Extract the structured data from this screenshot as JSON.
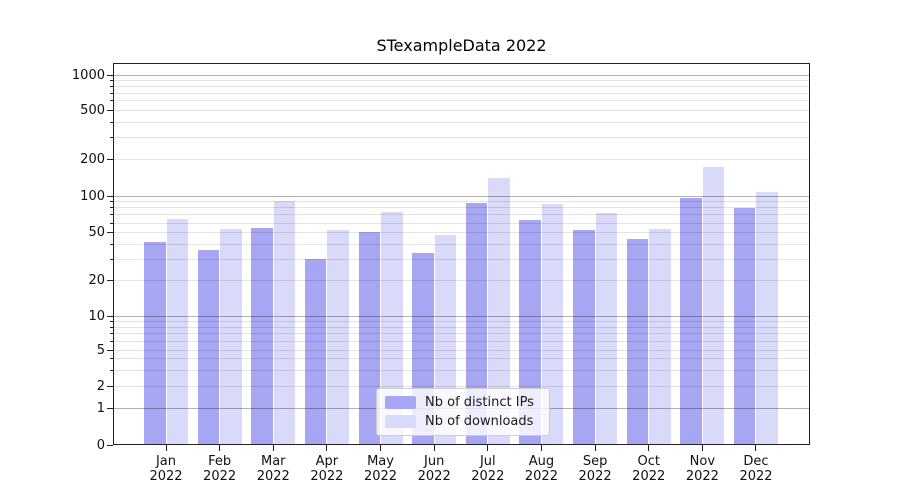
{
  "title": "STexampleData 2022",
  "legend": {
    "items": [
      {
        "label": "Nb of distinct IPs",
        "series": "ips"
      },
      {
        "label": "Nb of downloads",
        "series": "downloads"
      }
    ]
  },
  "colors": {
    "ips": "#a6a6f2",
    "downloads": "#d9d9f9",
    "grid_major": "rgba(0,0,0,0.30)",
    "grid_minor": "rgba(0,0,0,0.11)",
    "spine": "#222222",
    "text": "#111111"
  },
  "y_axis": {
    "tick_labels": [
      "0",
      "1",
      "2",
      "5",
      "10",
      "20",
      "50",
      "100",
      "200",
      "500",
      "1000"
    ],
    "tick_values": [
      0,
      1,
      2,
      5,
      10,
      20,
      50,
      100,
      200,
      500,
      1000
    ],
    "minor_values": [
      3,
      4,
      6,
      7,
      8,
      9,
      30,
      40,
      60,
      70,
      80,
      90,
      300,
      400,
      600,
      700,
      800,
      900
    ]
  },
  "x_axis": {
    "months": [
      "Jan",
      "Feb",
      "Mar",
      "Apr",
      "May",
      "Jun",
      "Jul",
      "Aug",
      "Sep",
      "Oct",
      "Nov",
      "Dec"
    ],
    "year": "2022"
  },
  "chart_data": {
    "type": "bar",
    "title": "STexampleData 2022",
    "categories": [
      "Jan 2022",
      "Feb 2022",
      "Mar 2022",
      "Apr 2022",
      "May 2022",
      "Jun 2022",
      "Jul 2022",
      "Aug 2022",
      "Sep 2022",
      "Oct 2022",
      "Nov 2022",
      "Dec 2022"
    ],
    "series": [
      {
        "name": "Nb of distinct IPs",
        "color": "#a6a6f2",
        "values": [
          42,
          36,
          55,
          30,
          51,
          34,
          88,
          64,
          53,
          44,
          97,
          79
        ]
      },
      {
        "name": "Nb of downloads",
        "color": "#d9d9f9",
        "values": [
          65,
          54,
          91,
          53,
          74,
          48,
          141,
          86,
          72,
          54,
          174,
          108
        ]
      }
    ],
    "xlabel": "",
    "ylabel": "",
    "yscale": "symlog",
    "y_ticks": [
      0,
      1,
      2,
      5,
      10,
      20,
      50,
      100,
      200,
      500,
      1000
    ],
    "ylim": [
      0,
      1250
    ],
    "grid": "horizontal major (1,10,100,1000 darker) + minor (faint)",
    "legend_position": "lower center, inside plot, translucent white box"
  }
}
